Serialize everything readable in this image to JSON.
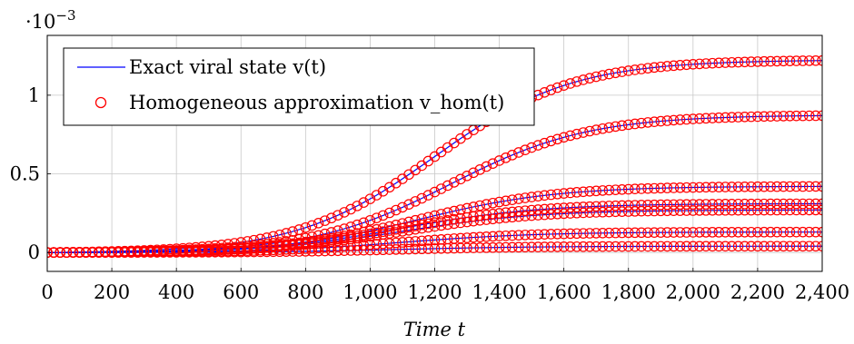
{
  "chart_data": {
    "type": "line",
    "title": "",
    "xlabel": "Time t",
    "ylabel": "",
    "y_scale_label": "·10",
    "y_scale_exponent": "−3",
    "xlim": [
      0,
      2400
    ],
    "ylim": [
      -0.00012,
      0.00138
    ],
    "grid": true,
    "legend_position": "top-left",
    "x_ticks": [
      0,
      200,
      400,
      600,
      800,
      1000,
      1200,
      1400,
      1600,
      1800,
      2000,
      2200,
      2400
    ],
    "x_tick_labels": [
      "0",
      "200",
      "400",
      "600",
      "800",
      "1,000",
      "1,200",
      "1,400",
      "1,600",
      "1,800",
      "2,000",
      "2,200",
      "2,400"
    ],
    "y_ticks": [
      0,
      0.0005,
      0.001
    ],
    "y_tick_labels": [
      "0",
      "0.5",
      "1"
    ],
    "legend": [
      {
        "key": "exact",
        "label": "Exact viral state v(t)",
        "style": "line",
        "color": "#0000ff"
      },
      {
        "key": "hom",
        "label": "Homogeneous approximation v_hom(t)",
        "style": "circle",
        "color": "#ff0000"
      }
    ],
    "curve_model": "logistic",
    "series": [
      {
        "final_value": 0.00122,
        "midpoint": 1200,
        "rate": 0.0047
      },
      {
        "final_value": 0.00087,
        "midpoint": 1250,
        "rate": 0.0047
      },
      {
        "final_value": 0.00042,
        "midpoint": 1150,
        "rate": 0.0047
      },
      {
        "final_value": 0.00031,
        "midpoint": 1100,
        "rate": 0.0047
      },
      {
        "final_value": 0.00027,
        "midpoint": 1100,
        "rate": 0.0047
      },
      {
        "final_value": 0.00013,
        "midpoint": 1100,
        "rate": 0.0047
      },
      {
        "final_value": 4e-05,
        "midpoint": 1100,
        "rate": 0.0047
      }
    ],
    "marker_spacing": 20
  }
}
